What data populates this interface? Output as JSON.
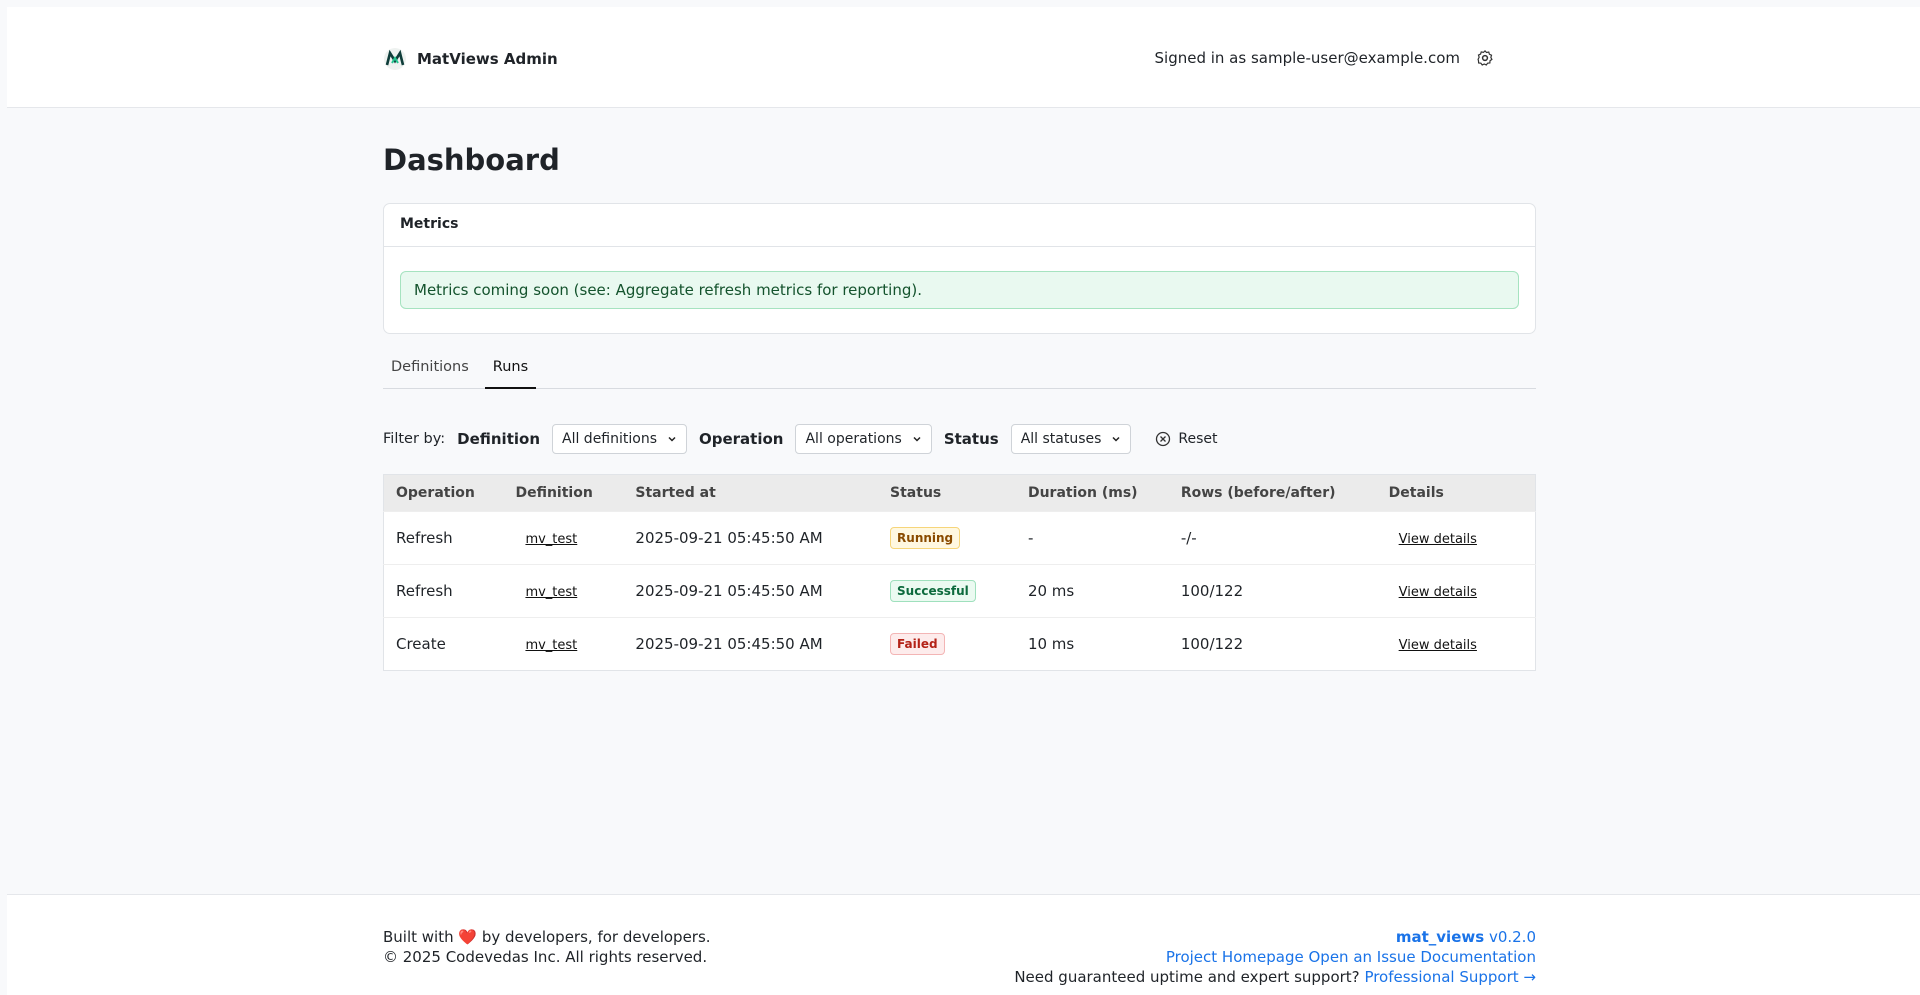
{
  "header": {
    "brand": "MatViews Admin",
    "user": "Signed in as sample-user@example.com"
  },
  "page_title": "Dashboard",
  "metrics": {
    "title": "Metrics",
    "message": "Metrics coming soon (see: Aggregate refresh metrics for reporting)."
  },
  "tabs": [
    "Definitions",
    "Runs"
  ],
  "filters": {
    "label": "Filter by:",
    "items": [
      {
        "label": "Definition",
        "value": "All definitions"
      },
      {
        "label": "Operation",
        "value": "All operations"
      },
      {
        "label": "Status",
        "value": "All statuses"
      }
    ],
    "reset": "Reset"
  },
  "table": {
    "columns": [
      "Operation",
      "Definition",
      "Started at",
      "Status",
      "Duration (ms)",
      "Rows (before/after)",
      "Details"
    ],
    "rows": [
      [
        "Refresh",
        "mv_test",
        "2025-09-21 05:45:50 AM",
        "Running",
        "-",
        "-/-",
        "View details"
      ],
      [
        "Refresh",
        "mv_test",
        "2025-09-21 05:45:50 AM",
        "Successful",
        "20 ms",
        "100/122",
        "View details"
      ],
      [
        "Create",
        "mv_test",
        "2025-09-21 05:45:50 AM",
        "Failed",
        "10 ms",
        "100/122",
        "View details"
      ]
    ]
  },
  "footer": {
    "built": "Built with ❤️ by developers, for developers.",
    "copyright": "© 2025 Codevedas Inc. All rights reserved.",
    "product": "mat_views",
    "version": "v0.2.0",
    "links": [
      "Project Homepage",
      "Open an Issue",
      "Documentation"
    ],
    "support_text": "Need guaranteed uptime and expert support?",
    "support_link": "Professional Support →"
  }
}
